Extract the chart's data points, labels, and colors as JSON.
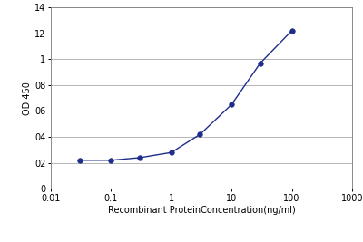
{
  "x_values": [
    0.03,
    0.1,
    0.3,
    1,
    3,
    10,
    30,
    100
  ],
  "y_values": [
    0.22,
    0.22,
    0.24,
    0.28,
    0.42,
    0.65,
    0.97,
    1.22
  ],
  "xlabel": "Recombinant ProteinConcentration(ng/ml)",
  "ylabel": "OD 450",
  "xlim": [
    0.01,
    1000
  ],
  "ylim": [
    0,
    1.4
  ],
  "yticks": [
    0,
    0.2,
    0.4,
    0.6,
    0.8,
    1.0,
    1.2,
    1.4
  ],
  "ytick_labels": [
    "0",
    "02",
    "04",
    "06",
    "08",
    "1",
    "12",
    "14"
  ],
  "xtick_positions": [
    0.01,
    0.1,
    1,
    10,
    100,
    1000
  ],
  "xtick_labels": [
    "0.01",
    "0.1",
    "1",
    "10",
    "100",
    "1000"
  ],
  "line_color": "#1F2D8A",
  "marker": "o",
  "marker_size": 4,
  "line_width": 1.0,
  "plot_bg_color": "#ffffff",
  "fig_bg_color": "#ffffff",
  "grid_color": "#aaaaaa",
  "spine_color": "#888888",
  "xlabel_fontsize": 7,
  "ylabel_fontsize": 7,
  "tick_fontsize": 7
}
